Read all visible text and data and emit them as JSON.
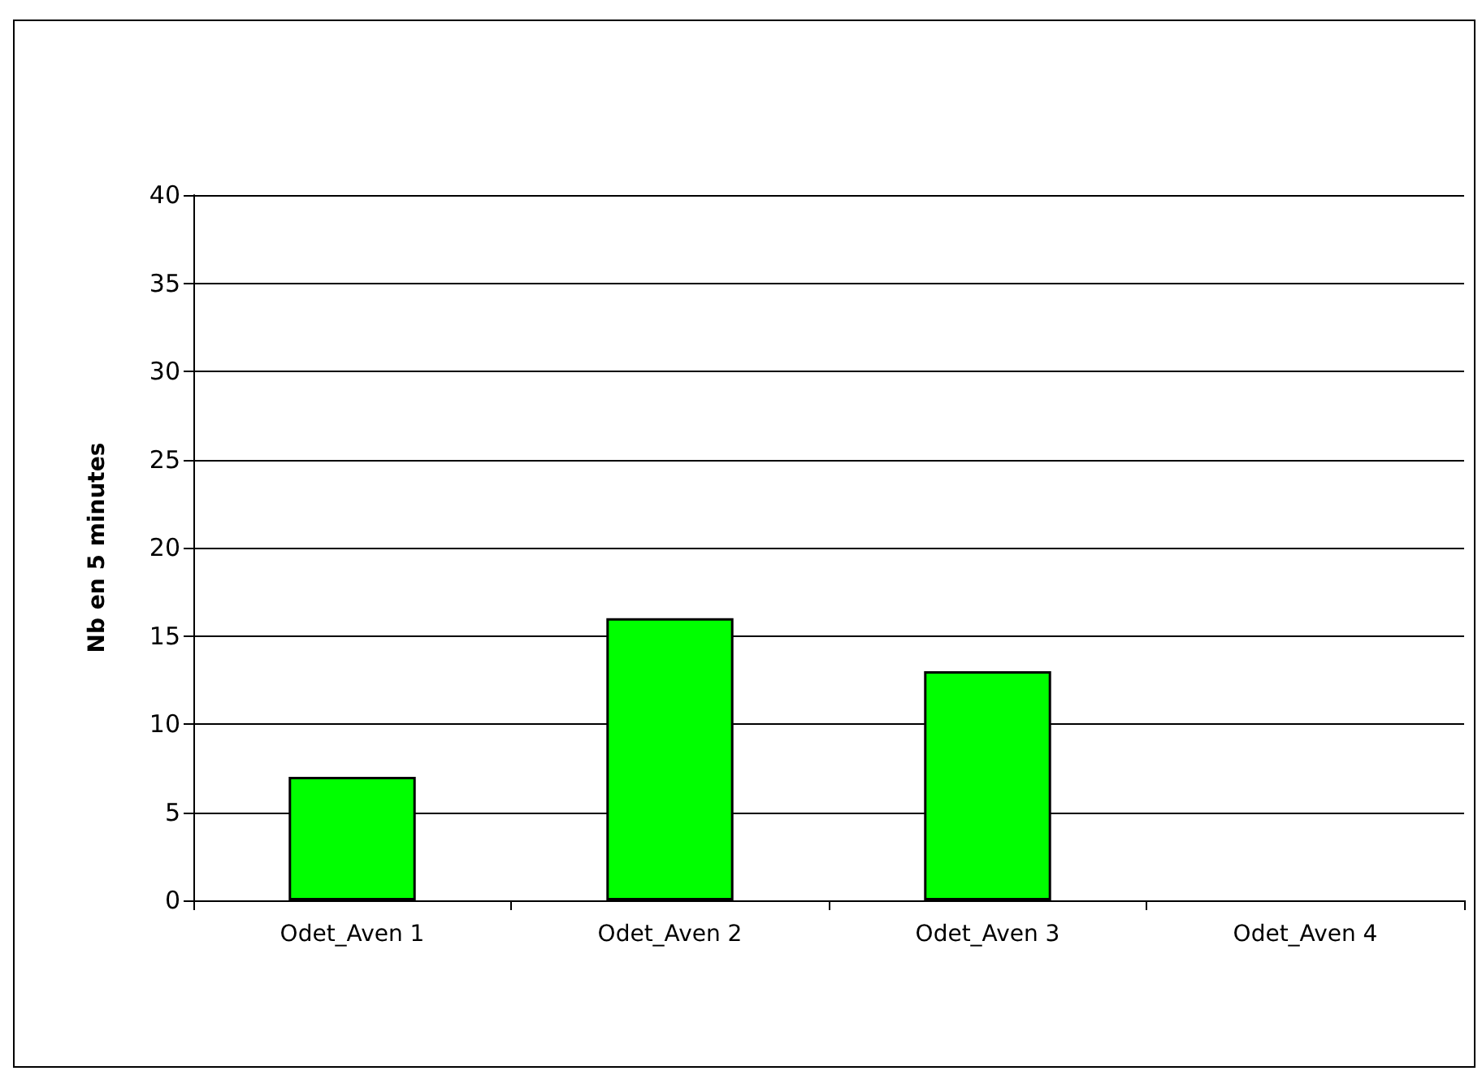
{
  "chart_data": {
    "type": "bar",
    "ylabel": "Nb en 5 minutes",
    "categories": [
      "Odet_Aven 1",
      "Odet_Aven 2",
      "Odet_Aven 3",
      "Odet_Aven 4"
    ],
    "values": [
      7,
      16,
      13,
      null
    ],
    "color": "#00ff00",
    "ylim": [
      0,
      40
    ],
    "yticks": [
      0,
      5,
      10,
      15,
      20,
      25,
      30,
      35,
      40
    ],
    "grid": "y"
  }
}
